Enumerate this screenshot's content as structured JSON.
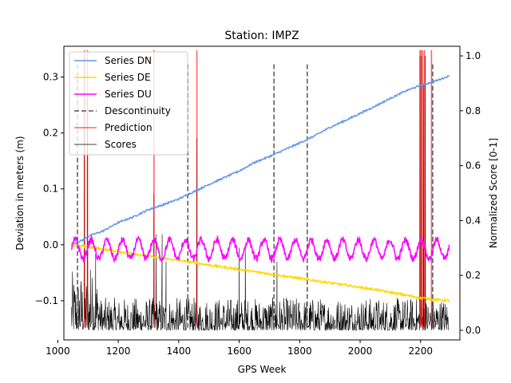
{
  "chart_data": {
    "type": "line",
    "title": "Station: IMPZ",
    "xlabel": "GPS Week",
    "ylabel_left": "Deviation in meters (m)",
    "ylabel_right": "Normalized Score [0-1]",
    "xlim": [
      1020,
      2330
    ],
    "ylim_left": [
      -0.17,
      0.355
    ],
    "ylim_right": [
      -0.035,
      1.035
    ],
    "x_ticks": [
      1000,
      1200,
      1400,
      1600,
      1800,
      2000,
      2200
    ],
    "y_ticks_left": [
      -0.1,
      0.0,
      0.1,
      0.2,
      0.3
    ],
    "y_tick_labels_left": [
      "−0.1",
      "0.0",
      "0.1",
      "0.2",
      "0.3"
    ],
    "y_ticks_right": [
      0.0,
      0.2,
      0.4,
      0.6,
      0.8,
      1.0
    ],
    "y_tick_labels_right": [
      "0.0",
      "0.2",
      "0.4",
      "0.6",
      "0.8",
      "1.0"
    ],
    "grid": false,
    "legend_position": "top-left",
    "series": [
      {
        "name": "Series DN",
        "color": "#6495ED",
        "x": [
          1045,
          1080,
          1100,
          1150,
          1200,
          1250,
          1300,
          1350,
          1400,
          1450,
          1500,
          1550,
          1600,
          1650,
          1700,
          1750,
          1800,
          1850,
          1900,
          1950,
          2000,
          2050,
          2100,
          2150,
          2200,
          2250,
          2295
        ],
        "y": [
          0.0,
          0.008,
          0.015,
          0.025,
          0.04,
          0.05,
          0.063,
          0.072,
          0.082,
          0.095,
          0.108,
          0.12,
          0.132,
          0.147,
          0.158,
          0.17,
          0.182,
          0.195,
          0.21,
          0.222,
          0.235,
          0.248,
          0.262,
          0.275,
          0.285,
          0.293,
          0.302
        ]
      },
      {
        "name": "Series DE",
        "color": "#FFD700",
        "x": [
          1045,
          1100,
          1150,
          1200,
          1250,
          1300,
          1350,
          1400,
          1450,
          1500,
          1550,
          1600,
          1650,
          1700,
          1750,
          1800,
          1850,
          1900,
          1950,
          2000,
          2050,
          2100,
          2150,
          2200,
          2250,
          2295
        ],
        "y": [
          0.0,
          -0.004,
          -0.008,
          -0.012,
          -0.016,
          -0.02,
          -0.024,
          -0.028,
          -0.032,
          -0.036,
          -0.04,
          -0.044,
          -0.048,
          -0.052,
          -0.056,
          -0.06,
          -0.064,
          -0.068,
          -0.072,
          -0.076,
          -0.08,
          -0.085,
          -0.09,
          -0.095,
          -0.098,
          -0.1
        ]
      },
      {
        "name": "Series DU",
        "color": "#FF00FF",
        "mean": -0.008,
        "amplitude": 0.017,
        "period_weeks": 52,
        "x_range": [
          1045,
          2295
        ]
      },
      {
        "name": "Descontinuity",
        "color": "#555555",
        "x": [
          1065,
          1430,
          1715,
          1825,
          2240
        ],
        "y_range": [
          -0.148,
          0.325
        ]
      },
      {
        "name": "Prediction",
        "color": "#FF0000",
        "x": [
          1088,
          1098,
          1318,
          1460,
          2198,
          2202,
          2207,
          2213,
          2236
        ],
        "y_range": [
          -0.148,
          0.348
        ]
      },
      {
        "name": "Scores",
        "color": "#000000",
        "axis": "right",
        "x_range": [
          1045,
          2295
        ],
        "baseline": 0.0,
        "typical_max": 0.12,
        "spikes": [
          {
            "x": 1088,
            "y": 1.0
          },
          {
            "x": 1098,
            "y": 0.85
          },
          {
            "x": 1108,
            "y": 0.22
          },
          {
            "x": 1125,
            "y": 0.28
          },
          {
            "x": 1318,
            "y": 0.5
          },
          {
            "x": 1325,
            "y": 0.35
          },
          {
            "x": 1345,
            "y": 0.35
          },
          {
            "x": 1358,
            "y": 0.25
          },
          {
            "x": 1460,
            "y": 0.7
          },
          {
            "x": 1600,
            "y": 0.3
          },
          {
            "x": 1620,
            "y": 0.3
          },
          {
            "x": 1725,
            "y": 0.25
          },
          {
            "x": 2198,
            "y": 1.0
          },
          {
            "x": 2203,
            "y": 1.0
          },
          {
            "x": 2210,
            "y": 0.9
          },
          {
            "x": 2216,
            "y": 1.0
          }
        ]
      }
    ]
  }
}
